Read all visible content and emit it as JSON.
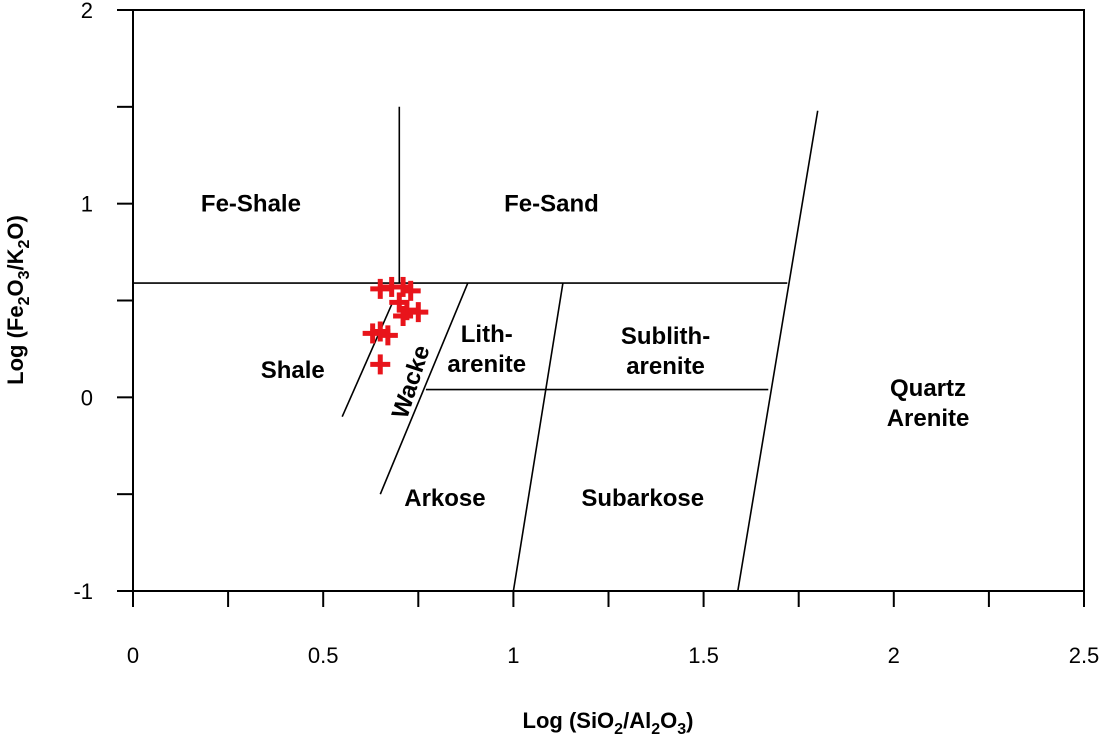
{
  "chart_data": {
    "type": "scatter",
    "xlabel": {
      "prefix": "Log (SiO",
      "sub1": "2",
      "mid": "/Al",
      "sub2": "2",
      "mid2": "O",
      "sub3": "3",
      "suffix": ")"
    },
    "ylabel": {
      "prefix": "Log (Fe",
      "sub1": "2",
      "mid": "O",
      "sub2": "3",
      "mid2": "/K",
      "sub3": "2",
      "mid3": "O",
      "suffix": ")"
    },
    "xlim": [
      0,
      2.5
    ],
    "ylim": [
      -1,
      2
    ],
    "x_ticks": [
      0,
      0.25,
      0.5,
      0.75,
      1,
      1.25,
      1.5,
      1.75,
      2,
      2.25,
      2.5
    ],
    "x_tick_labels": [
      {
        "value": 0,
        "label": "0"
      },
      {
        "value": 0.5,
        "label": "0.5"
      },
      {
        "value": 1,
        "label": "1"
      },
      {
        "value": 1.5,
        "label": "1.5"
      },
      {
        "value": 2,
        "label": "2"
      },
      {
        "value": 2.5,
        "label": "2.5"
      }
    ],
    "y_ticks": [
      -1,
      -0.5,
      0,
      0.5,
      1,
      1.5,
      2
    ],
    "y_tick_labels": [
      {
        "value": -1,
        "label": "-1"
      },
      {
        "value": 0,
        "label": "0"
      },
      {
        "value": 1,
        "label": "1"
      },
      {
        "value": 2,
        "label": "2"
      }
    ],
    "grid": false,
    "boundaries": [
      {
        "name": "fe-boundary",
        "points": [
          [
            0,
            0.59
          ],
          [
            1.72,
            0.59
          ]
        ]
      },
      {
        "name": "fe-shale-sand-divider",
        "points": [
          [
            0.7,
            1.5
          ],
          [
            0.7,
            0.59
          ]
        ]
      },
      {
        "name": "shale-wacke-boundary",
        "points": [
          [
            0.55,
            -0.1
          ],
          [
            0.68,
            0.48
          ]
        ]
      },
      {
        "name": "wacke-arenite-boundary",
        "points": [
          [
            0.65,
            -0.5
          ],
          [
            0.88,
            0.59
          ]
        ]
      },
      {
        "name": "arkose-litharenite-divider",
        "points": [
          [
            0.77,
            0.04
          ],
          [
            1.67,
            0.04
          ]
        ]
      },
      {
        "name": "litharenite-sublitharenite-boundary",
        "points": [
          [
            1.0,
            -1.0
          ],
          [
            1.13,
            0.59
          ]
        ]
      },
      {
        "name": "quartz-arenite-boundary",
        "points": [
          [
            1.59,
            -1.0
          ],
          [
            1.8,
            1.48
          ]
        ]
      }
    ],
    "fields": [
      {
        "name": "Fe-Shale",
        "lines": [
          "Fe-Shale"
        ],
        "x": 0.31,
        "y": 1.0
      },
      {
        "name": "Fe-Sand",
        "lines": [
          "Fe-Sand"
        ],
        "x": 1.1,
        "y": 1.0
      },
      {
        "name": "Shale",
        "lines": [
          "Shale"
        ],
        "x": 0.42,
        "y": 0.14
      },
      {
        "name": "Lith-arenite",
        "lines": [
          "Lith-",
          "arenite"
        ],
        "x": 0.93,
        "y": 0.25
      },
      {
        "name": "Sublith-arenite",
        "lines": [
          "Sublith-",
          "arenite"
        ],
        "x": 1.4,
        "y": 0.24
      },
      {
        "name": "Arkose",
        "lines": [
          "Arkose"
        ],
        "x": 0.82,
        "y": -0.52
      },
      {
        "name": "Subarkose",
        "lines": [
          "Subarkose"
        ],
        "x": 1.34,
        "y": -0.52
      },
      {
        "name": "Quartz Arenite",
        "lines": [
          "Quartz",
          "Arenite"
        ],
        "x": 2.09,
        "y": -0.03
      },
      {
        "name": "Wacke",
        "lines": [
          "Wacke"
        ],
        "x": 0.73,
        "y": 0.08,
        "rotate": -72
      }
    ],
    "series": [
      {
        "marker": "plus",
        "color": "#e8141b",
        "points": [
          [
            0.65,
            0.56
          ],
          [
            0.68,
            0.57
          ],
          [
            0.71,
            0.57
          ],
          [
            0.73,
            0.55
          ],
          [
            0.7,
            0.49
          ],
          [
            0.72,
            0.45
          ],
          [
            0.75,
            0.44
          ],
          [
            0.71,
            0.42
          ],
          [
            0.63,
            0.33
          ],
          [
            0.65,
            0.34
          ],
          [
            0.67,
            0.32
          ],
          [
            0.65,
            0.17
          ]
        ]
      }
    ]
  }
}
